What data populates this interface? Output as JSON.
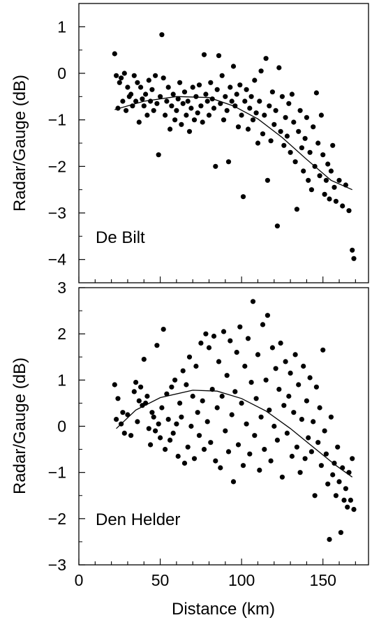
{
  "chart_data": [
    {
      "type": "scatter",
      "annotation": "De Bilt",
      "ylabel": "Radar/Gauge (dB)",
      "xlabel": "",
      "xlim": [
        0,
        178
      ],
      "ylim": [
        -4.5,
        1.5
      ],
      "yticks": [
        1,
        0,
        -1,
        -2,
        -3,
        -4
      ],
      "yticklabels": [
        "1",
        "0",
        "−1",
        "−2",
        "−3",
        "−4"
      ],
      "grid": false,
      "points": [
        [
          22,
          0.42
        ],
        [
          23,
          -0.05
        ],
        [
          24,
          -0.75
        ],
        [
          25,
          -0.2
        ],
        [
          26,
          -0.1
        ],
        [
          27,
          -0.6
        ],
        [
          28,
          0.0
        ],
        [
          29,
          -0.8
        ],
        [
          30,
          -0.3
        ],
        [
          31,
          -0.5
        ],
        [
          32,
          -0.45
        ],
        [
          33,
          -0.7
        ],
        [
          34,
          -0.05
        ],
        [
          35,
          -0.6
        ],
        [
          36,
          -0.2
        ],
        [
          37,
          -1.05
        ],
        [
          38,
          -0.3
        ],
        [
          39,
          -0.55
        ],
        [
          40,
          -0.7
        ],
        [
          41,
          -0.45
        ],
        [
          42,
          -0.9
        ],
        [
          43,
          -0.15
        ],
        [
          44,
          -0.6
        ],
        [
          45,
          -0.35
        ],
        [
          46,
          -0.8
        ],
        [
          47,
          -0.05
        ],
        [
          48,
          -0.65
        ],
        [
          49,
          -1.75
        ],
        [
          50,
          -0.5
        ],
        [
          51,
          0.83
        ],
        [
          52,
          -0.1
        ],
        [
          53,
          -0.9
        ],
        [
          54,
          -0.6
        ],
        [
          55,
          -0.3
        ],
        [
          56,
          -1.2
        ],
        [
          57,
          -0.7
        ],
        [
          58,
          -0.45
        ],
        [
          59,
          -1.0
        ],
        [
          60,
          -0.8
        ],
        [
          61,
          -0.55
        ],
        [
          62,
          -0.2
        ],
        [
          63,
          -1.1
        ],
        [
          64,
          -0.65
        ],
        [
          65,
          -0.4
        ],
        [
          66,
          -0.9
        ],
        [
          67,
          -0.6
        ],
        [
          68,
          -1.25
        ],
        [
          69,
          -0.75
        ],
        [
          70,
          -0.3
        ],
        [
          71,
          -1.0
        ],
        [
          72,
          -0.5
        ],
        [
          73,
          -0.85
        ],
        [
          74,
          -0.25
        ],
        [
          75,
          -0.7
        ],
        [
          76,
          -1.05
        ],
        [
          77,
          0.4
        ],
        [
          78,
          -0.45
        ],
        [
          79,
          -0.6
        ],
        [
          80,
          -0.9
        ],
        [
          81,
          -0.2
        ],
        [
          82,
          -0.55
        ],
        [
          83,
          -0.75
        ],
        [
          84,
          -2.0
        ],
        [
          85,
          -0.35
        ],
        [
          86,
          0.38
        ],
        [
          87,
          -0.65
        ],
        [
          88,
          -0.05
        ],
        [
          89,
          -1.0
        ],
        [
          90,
          -0.5
        ],
        [
          91,
          -0.8
        ],
        [
          92,
          -1.9
        ],
        [
          93,
          -0.3
        ],
        [
          94,
          -0.6
        ],
        [
          95,
          0.15
        ],
        [
          96,
          -0.7
        ],
        [
          97,
          -0.45
        ],
        [
          98,
          -1.15
        ],
        [
          99,
          -0.25
        ],
        [
          100,
          -0.9
        ],
        [
          101,
          -2.65
        ],
        [
          102,
          -0.6
        ],
        [
          103,
          -0.35
        ],
        [
          104,
          -1.2
        ],
        [
          105,
          -0.75
        ],
        [
          106,
          -0.5
        ],
        [
          107,
          -1.0
        ],
        [
          108,
          -0.15
        ],
        [
          109,
          -0.85
        ],
        [
          110,
          -1.5
        ],
        [
          111,
          -0.6
        ],
        [
          112,
          0.05
        ],
        [
          113,
          -1.3
        ],
        [
          114,
          -0.9
        ],
        [
          115,
          0.32
        ],
        [
          116,
          -2.3
        ],
        [
          117,
          -0.7
        ],
        [
          118,
          -1.45
        ],
        [
          119,
          -0.4
        ],
        [
          120,
          -1.1
        ],
        [
          121,
          -0.8
        ],
        [
          122,
          -3.28
        ],
        [
          123,
          0.12
        ],
        [
          124,
          -1.25
        ],
        [
          125,
          -0.5
        ],
        [
          126,
          -1.55
        ],
        [
          127,
          -0.95
        ],
        [
          128,
          -1.35
        ],
        [
          129,
          -0.65
        ],
        [
          130,
          -1.7
        ],
        [
          131,
          -0.45
        ],
        [
          132,
          -1.05
        ],
        [
          133,
          -1.9
        ],
        [
          134,
          -2.92
        ],
        [
          135,
          -1.25
        ],
        [
          136,
          -0.8
        ],
        [
          137,
          -1.6
        ],
        [
          138,
          -2.1
        ],
        [
          139,
          -1.4
        ],
        [
          140,
          -0.95
        ],
        [
          141,
          -2.3
        ],
        [
          142,
          -1.7
        ],
        [
          143,
          -2.5
        ],
        [
          144,
          -1.15
        ],
        [
          145,
          -2.0
        ],
        [
          146,
          -0.42
        ],
        [
          147,
          -1.5
        ],
        [
          148,
          -2.2
        ],
        [
          149,
          -0.9
        ],
        [
          150,
          -1.75
        ],
        [
          151,
          -2.6
        ],
        [
          152,
          -2.3
        ],
        [
          153,
          -1.95
        ],
        [
          154,
          -2.7
        ],
        [
          155,
          -2.1
        ],
        [
          156,
          -1.55
        ],
        [
          157,
          -2.45
        ],
        [
          158,
          -2.75
        ],
        [
          160,
          -2.3
        ],
        [
          162,
          -2.85
        ],
        [
          164,
          -2.4
        ],
        [
          166,
          -2.95
        ],
        [
          168,
          -3.8
        ],
        [
          169,
          -3.98
        ]
      ],
      "fit": [
        [
          22,
          -0.78
        ],
        [
          40,
          -0.6
        ],
        [
          60,
          -0.5
        ],
        [
          80,
          -0.52
        ],
        [
          95,
          -0.7
        ],
        [
          110,
          -0.98
        ],
        [
          125,
          -1.38
        ],
        [
          140,
          -1.85
        ],
        [
          155,
          -2.3
        ],
        [
          168,
          -2.5
        ]
      ]
    },
    {
      "type": "scatter",
      "annotation": "Den Helder",
      "ylabel": "Radar/Gauge (dB)",
      "xlabel": "Distance (km)",
      "xlim": [
        0,
        178
      ],
      "ylim": [
        -3,
        3
      ],
      "xticks": [
        0,
        50,
        100,
        150
      ],
      "xticklabels": [
        "0",
        "50",
        "100",
        "150"
      ],
      "yticks": [
        3,
        2,
        1,
        0,
        -1,
        -2,
        -3
      ],
      "yticklabels": [
        "3",
        "2",
        "1",
        "0",
        "−1",
        "−2",
        "−3"
      ],
      "grid": false,
      "points": [
        [
          22,
          0.9
        ],
        [
          23,
          0.15
        ],
        [
          24,
          0.6
        ],
        [
          26,
          0.05
        ],
        [
          27,
          0.3
        ],
        [
          28,
          -0.15
        ],
        [
          30,
          0.25
        ],
        [
          32,
          -0.2
        ],
        [
          34,
          0.75
        ],
        [
          35,
          0.95
        ],
        [
          36,
          0.1
        ],
        [
          37,
          0.55
        ],
        [
          38,
          0.85
        ],
        [
          39,
          0.45
        ],
        [
          40,
          1.45
        ],
        [
          41,
          0.5
        ],
        [
          42,
          0.65
        ],
        [
          43,
          -0.05
        ],
        [
          44,
          -0.4
        ],
        [
          45,
          0.3
        ],
        [
          46,
          0.2
        ],
        [
          47,
          -0.1
        ],
        [
          48,
          1.75
        ],
        [
          49,
          0.05
        ],
        [
          50,
          -0.25
        ],
        [
          51,
          0.4
        ],
        [
          52,
          2.1
        ],
        [
          53,
          -0.5
        ],
        [
          54,
          0.7
        ],
        [
          55,
          0.15
        ],
        [
          56,
          -0.3
        ],
        [
          57,
          0.85
        ],
        [
          58,
          -0.15
        ],
        [
          59,
          1.0
        ],
        [
          60,
          0.05
        ],
        [
          61,
          -0.65
        ],
        [
          62,
          0.5
        ],
        [
          63,
          0.2
        ],
        [
          64,
          1.2
        ],
        [
          65,
          -0.8
        ],
        [
          66,
          0.9
        ],
        [
          67,
          -0.45
        ],
        [
          68,
          1.5
        ],
        [
          69,
          0.0
        ],
        [
          70,
          0.65
        ],
        [
          71,
          -0.7
        ],
        [
          72,
          1.3
        ],
        [
          73,
          0.3
        ],
        [
          74,
          -0.2
        ],
        [
          75,
          1.8
        ],
        [
          76,
          0.55
        ],
        [
          77,
          -0.5
        ],
        [
          78,
          2.0
        ],
        [
          79,
          0.1
        ],
        [
          80,
          1.7
        ],
        [
          81,
          -0.35
        ],
        [
          82,
          0.8
        ],
        [
          83,
          1.95
        ],
        [
          84,
          -0.75
        ],
        [
          85,
          0.4
        ],
        [
          86,
          1.4
        ],
        [
          87,
          -0.9
        ],
        [
          88,
          0.65
        ],
        [
          89,
          2.05
        ],
        [
          90,
          -0.1
        ],
        [
          91,
          1.1
        ],
        [
          92,
          -0.55
        ],
        [
          93,
          1.85
        ],
        [
          94,
          0.25
        ],
        [
          95,
          -1.2
        ],
        [
          96,
          0.75
        ],
        [
          97,
          1.6
        ],
        [
          98,
          -0.4
        ],
        [
          99,
          2.15
        ],
        [
          100,
          0.5
        ],
        [
          101,
          -0.85
        ],
        [
          102,
          1.3
        ],
        [
          103,
          0.05
        ],
        [
          104,
          1.9
        ],
        [
          105,
          -0.6
        ],
        [
          106,
          0.95
        ],
        [
          107,
          2.7
        ],
        [
          108,
          -0.2
        ],
        [
          109,
          0.6
        ],
        [
          110,
          1.55
        ],
        [
          111,
          -0.95
        ],
        [
          112,
          0.2
        ],
        [
          113,
          2.2
        ],
        [
          114,
          -0.5
        ],
        [
          115,
          1.0
        ],
        [
          116,
          2.4
        ],
        [
          117,
          0.35
        ],
        [
          118,
          -0.75
        ],
        [
          119,
          1.7
        ],
        [
          120,
          0.0
        ],
        [
          121,
          1.25
        ],
        [
          122,
          -0.3
        ],
        [
          123,
          0.8
        ],
        [
          124,
          1.8
        ],
        [
          125,
          -1.1
        ],
        [
          126,
          0.45
        ],
        [
          127,
          1.4
        ],
        [
          128,
          -0.15
        ],
        [
          129,
          0.65
        ],
        [
          130,
          1.15
        ],
        [
          131,
          -0.65
        ],
        [
          132,
          0.3
        ],
        [
          133,
          1.55
        ],
        [
          134,
          -0.45
        ],
        [
          135,
          0.9
        ],
        [
          136,
          -1.0
        ],
        [
          137,
          0.15
        ],
        [
          138,
          1.3
        ],
        [
          139,
          -0.7
        ],
        [
          140,
          0.55
        ],
        [
          141,
          -0.25
        ],
        [
          142,
          1.05
        ],
        [
          143,
          -0.55
        ],
        [
          144,
          0.1
        ],
        [
          145,
          -1.5
        ],
        [
          146,
          0.85
        ],
        [
          147,
          -0.35
        ],
        [
          148,
          0.4
        ],
        [
          149,
          -0.85
        ],
        [
          150,
          1.65
        ],
        [
          151,
          -0.1
        ],
        [
          152,
          -0.6
        ],
        [
          153,
          -1.25
        ],
        [
          154,
          -2.45
        ],
        [
          155,
          0.2
        ],
        [
          156,
          -1.05
        ],
        [
          157,
          -0.8
        ],
        [
          158,
          -1.5
        ],
        [
          159,
          -0.45
        ],
        [
          160,
          -1.2
        ],
        [
          161,
          -2.3
        ],
        [
          162,
          -0.9
        ],
        [
          163,
          -1.6
        ],
        [
          164,
          -1.35
        ],
        [
          165,
          -1.75
        ],
        [
          166,
          -1.0
        ],
        [
          167,
          -1.6
        ],
        [
          168,
          -0.7
        ],
        [
          169,
          -1.8
        ]
      ],
      "fit": [
        [
          23,
          -0.05
        ],
        [
          35,
          0.35
        ],
        [
          50,
          0.62
        ],
        [
          70,
          0.78
        ],
        [
          85,
          0.76
        ],
        [
          100,
          0.6
        ],
        [
          115,
          0.33
        ],
        [
          130,
          -0.05
        ],
        [
          145,
          -0.48
        ],
        [
          158,
          -0.85
        ],
        [
          168,
          -1.1
        ]
      ]
    }
  ]
}
